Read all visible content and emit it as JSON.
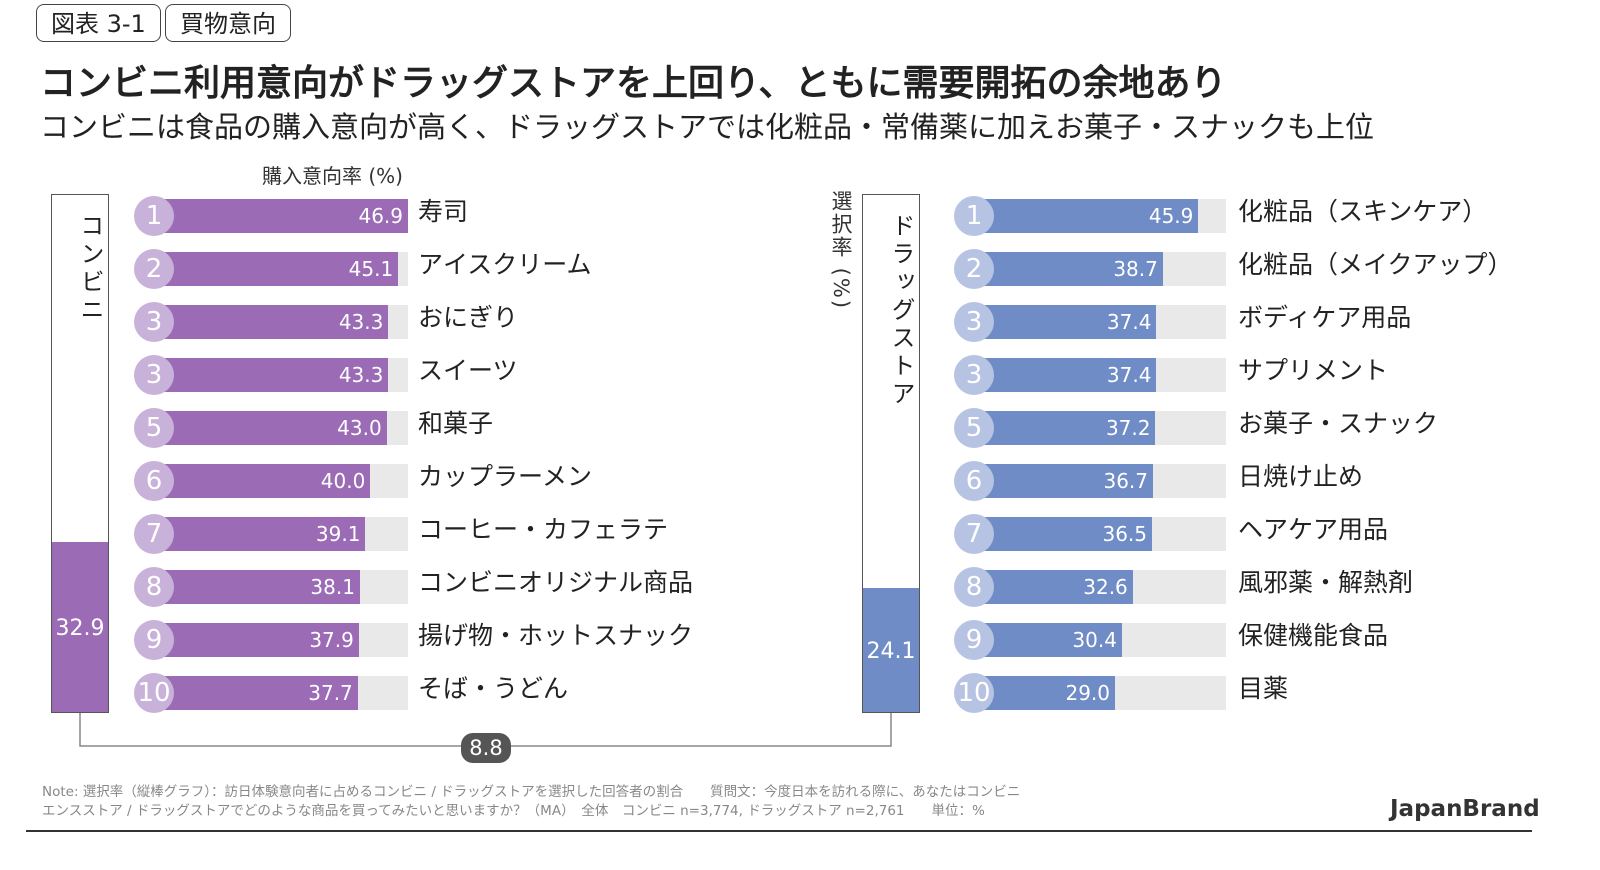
{
  "header": {
    "figure_tag": "図表 3-1",
    "category_tag": "買物意向",
    "title": "コンビニ利用意向がドラッグストアを上回り、ともに需要開拓の余地あり",
    "subtitle": "コンビニは食品の購入意向が高く、ドラッグストアでは化粧品・常備薬に加えお菓子・スナックも上位"
  },
  "colors": {
    "conbini_bar": "#9b6bb5",
    "conbini_circle": "#c9b2d9",
    "drug_bar": "#6f8cc7",
    "drug_circle": "#b7c3e3",
    "track": "#e9e9e9"
  },
  "chart_data": [
    {
      "type": "bar",
      "name": "selection-rate",
      "ylabel": "選択率 (%)",
      "categories": [
        "コンビニ",
        "ドラッグストア"
      ],
      "values": [
        32.9,
        24.1
      ],
      "value_labels": [
        "32.9",
        "24.1"
      ],
      "ylim": [
        0,
        100
      ],
      "difference": "8.8"
    },
    {
      "type": "bar",
      "name": "conbini-purchase-intent",
      "orientation": "horizontal",
      "xlabel": "購入意向率 (%)",
      "xlim": [
        0,
        46.9
      ],
      "ranks": [
        "1",
        "2",
        "3",
        "3",
        "5",
        "6",
        "7",
        "8",
        "9",
        "10"
      ],
      "categories": [
        "寿司",
        "アイスクリーム",
        "おにぎり",
        "スイーツ",
        "和菓子",
        "カップラーメン",
        "コーヒー・カフェラテ",
        "コンビニオリジナル商品",
        "揚げ物・ホットスナック",
        "そば・うどん"
      ],
      "values": [
        46.9,
        45.1,
        43.3,
        43.3,
        43.0,
        40.0,
        39.1,
        38.1,
        37.9,
        37.7
      ],
      "value_labels": [
        "46.9",
        "45.1",
        "43.3",
        "43.3",
        "43.0",
        "40.0",
        "39.1",
        "38.1",
        "37.9",
        "37.7"
      ]
    },
    {
      "type": "bar",
      "name": "drugstore-purchase-intent",
      "orientation": "horizontal",
      "xlim": [
        0,
        51.5
      ],
      "ranks": [
        "1",
        "2",
        "3",
        "3",
        "5",
        "6",
        "7",
        "8",
        "9",
        "10"
      ],
      "categories": [
        "化粧品（スキンケア）",
        "化粧品（メイクアップ）",
        "ボディケア用品",
        "サプリメント",
        "お菓子・スナック",
        "日焼け止め",
        "ヘアケア用品",
        "風邪薬・解熱剤",
        "保健機能食品",
        "目薬"
      ],
      "values": [
        45.9,
        38.7,
        37.4,
        37.4,
        37.2,
        36.7,
        36.5,
        32.6,
        30.4,
        29.0
      ],
      "value_labels": [
        "45.9",
        "38.7",
        "37.4",
        "37.4",
        "37.2",
        "36.7",
        "36.5",
        "32.6",
        "30.4",
        "29.0"
      ]
    }
  ],
  "footer": {
    "note_line1": "Note: 選択率（縦棒グラフ）：訪日体験意向者に占めるコンビニ / ドラッグストアを選択した回答者の割合　　質問文：今度日本を訪れる際に、あなたはコンビニ",
    "note_line2": "エンスストア / ドラッグストアでどのような商品を買ってみたいと思いますか？（MA）　全体　コンビニ n=3,774, ドラッグストア n=2,761　　単位：%",
    "brand": "JapanBrand"
  }
}
